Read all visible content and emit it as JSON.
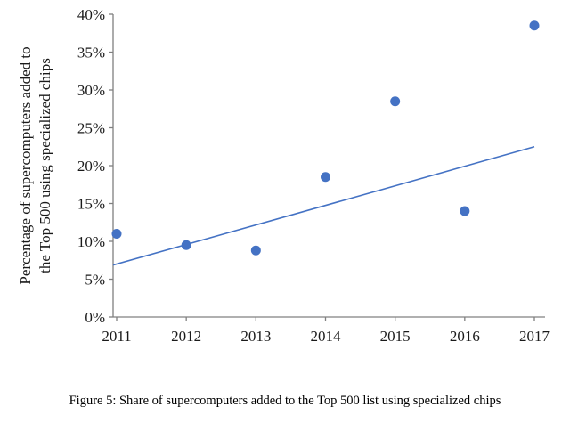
{
  "chart_data": {
    "type": "scatter",
    "x": [
      2011,
      2012,
      2013,
      2014,
      2015,
      2016,
      2017
    ],
    "values": [
      11,
      9.5,
      8.8,
      18.5,
      28.5,
      14,
      38.5
    ],
    "trendline": {
      "x1": 2011,
      "y1": 7,
      "x2": 2017,
      "y2": 22.5
    },
    "title": "",
    "xlabel": "",
    "ylabel": "Percentage of supercomputers added to the Top 500 using specialized chips",
    "ylabel_lines": [
      "Percentage of supercomputers added to",
      "the Top 500 using specialized chips"
    ],
    "ylim": [
      0,
      40
    ],
    "ytick_step": 5,
    "ytick_suffix": "%",
    "grid": false,
    "legend": "none",
    "point_color": "#4472C4",
    "line_color": "#4472C4",
    "axis_color": "#808080",
    "text_color": "#1a1a1a"
  },
  "caption": "Figure 5: Share of supercomputers added to the Top 500 list using specialized chips"
}
